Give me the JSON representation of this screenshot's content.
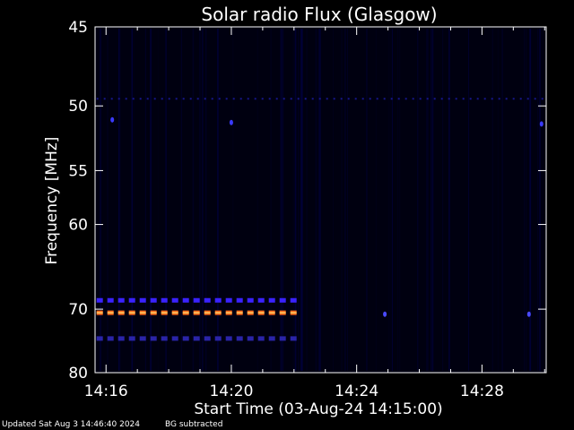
{
  "chart_data": {
    "type": "heatmap",
    "title": "Solar radio Flux (Glasgow)",
    "xlabel": "Start Time (03-Aug-24 14:15:00)",
    "ylabel": "Frequency [MHz]",
    "x_ticks": [
      "14:16",
      "14:20",
      "14:24",
      "14:28"
    ],
    "x_tick_minutes": [
      16,
      20,
      24,
      28
    ],
    "x_range_minutes": [
      15.65,
      30.05
    ],
    "y_ticks": [
      45,
      50,
      55,
      60,
      70,
      80
    ],
    "y_range": [
      45,
      80
    ],
    "background_color": "#000010",
    "signals": [
      {
        "name": "",
        "freq": 68.8,
        "x_start_min": 15.7,
        "x_end_min": 22.2,
        "color": "#3a22ff",
        "style": "dashed"
      },
      {
        "name": "",
        "freq": 70.5,
        "x_start_min": 15.7,
        "x_end_min": 22.2,
        "color": "#ff6a1a",
        "style": "dashed"
      },
      {
        "name": "",
        "freq": 74.3,
        "x_start_min": 15.7,
        "x_end_min": 22.2,
        "color": "#2a24a8",
        "style": "dashed"
      },
      {
        "name": "",
        "freq": 49.5,
        "x_start_min": 15.7,
        "x_end_min": 30.0,
        "color": "#16168a",
        "style": "dotted"
      }
    ],
    "spots": [
      {
        "freq": 51.0,
        "x_min": 16.2,
        "color": "#3a3aff"
      },
      {
        "freq": 51.2,
        "x_min": 20.0,
        "color": "#3a3aff"
      },
      {
        "freq": 70.7,
        "x_min": 24.9,
        "color": "#4a4aff"
      },
      {
        "freq": 70.7,
        "x_min": 29.5,
        "color": "#4a4aff"
      },
      {
        "freq": 51.3,
        "x_min": 29.9,
        "color": "#3a3aff"
      }
    ]
  },
  "footer": {
    "updated": "Updated Sat Aug  3 14:46:40 2024",
    "bg_note": "BG subtracted"
  }
}
